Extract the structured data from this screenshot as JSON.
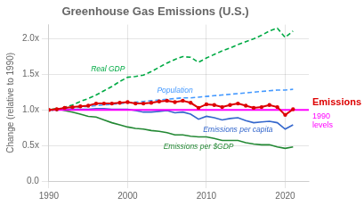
{
  "chart_data": {
    "type": "line",
    "title": "Greenhouse Gas Emissions (U.S.)",
    "ylabel": "Change (relative to 1990)",
    "x": [
      1990,
      1991,
      1992,
      1993,
      1994,
      1995,
      1996,
      1997,
      1998,
      1999,
      2000,
      2001,
      2002,
      2003,
      2004,
      2005,
      2006,
      2007,
      2008,
      2009,
      2010,
      2011,
      2012,
      2013,
      2014,
      2015,
      2016,
      2017,
      2018,
      2019,
      2020,
      2021
    ],
    "xlim": [
      1990,
      2023
    ],
    "xticks": [
      1990,
      2000,
      2010,
      2020
    ],
    "ylim": [
      0.0,
      2.2
    ],
    "yticks": [
      {
        "value": 0.0,
        "label": "0.0"
      },
      {
        "value": 0.5,
        "label": "0.5x"
      },
      {
        "value": 1.0,
        "label": "1.0x"
      },
      {
        "value": 1.5,
        "label": "1.5x"
      },
      {
        "value": 2.0,
        "label": "2.0x"
      }
    ],
    "grid": true,
    "series": [
      {
        "name": "Real GDP",
        "color": "#00aa44",
        "line_style": "dashed",
        "values": [
          1.0,
          0.99,
          1.04,
          1.07,
          1.12,
          1.16,
          1.21,
          1.27,
          1.33,
          1.4,
          1.46,
          1.47,
          1.49,
          1.54,
          1.6,
          1.66,
          1.71,
          1.75,
          1.74,
          1.67,
          1.73,
          1.78,
          1.83,
          1.87,
          1.92,
          1.96,
          2.0,
          2.05,
          2.11,
          2.15,
          2.02,
          2.11
        ]
      },
      {
        "name": "Population",
        "color": "#4499ff",
        "line_style": "dashed",
        "values": [
          1.0,
          1.01,
          1.02,
          1.03,
          1.04,
          1.05,
          1.06,
          1.07,
          1.08,
          1.09,
          1.1,
          1.11,
          1.12,
          1.13,
          1.14,
          1.15,
          1.16,
          1.17,
          1.17,
          1.18,
          1.19,
          1.2,
          1.21,
          1.22,
          1.23,
          1.24,
          1.25,
          1.26,
          1.27,
          1.28,
          1.28,
          1.29
        ]
      },
      {
        "name": "Emissions per capita",
        "color": "#3366cc",
        "line_style": "solid",
        "values": [
          1.0,
          1.0,
          1.01,
          1.01,
          1.01,
          1.01,
          1.02,
          1.02,
          1.01,
          1.01,
          1.01,
          0.99,
          0.97,
          0.97,
          0.98,
          0.99,
          0.96,
          0.97,
          0.94,
          0.87,
          0.91,
          0.89,
          0.86,
          0.88,
          0.89,
          0.85,
          0.82,
          0.83,
          0.84,
          0.82,
          0.73,
          0.79
        ]
      },
      {
        "name": "Emissions per $GDP",
        "color": "#228833",
        "line_style": "solid",
        "values": [
          1.0,
          1.02,
          0.99,
          0.97,
          0.94,
          0.91,
          0.9,
          0.86,
          0.82,
          0.79,
          0.76,
          0.74,
          0.73,
          0.71,
          0.7,
          0.68,
          0.65,
          0.65,
          0.63,
          0.62,
          0.62,
          0.6,
          0.57,
          0.57,
          0.57,
          0.54,
          0.52,
          0.51,
          0.51,
          0.48,
          0.46,
          0.48
        ]
      },
      {
        "name": "Emissions",
        "color": "#dd0000",
        "line_style": "solid",
        "marker": "circle",
        "values": [
          1.0,
          1.01,
          1.03,
          1.04,
          1.05,
          1.06,
          1.09,
          1.09,
          1.09,
          1.1,
          1.11,
          1.09,
          1.09,
          1.1,
          1.12,
          1.13,
          1.11,
          1.13,
          1.1,
          1.03,
          1.08,
          1.07,
          1.04,
          1.07,
          1.09,
          1.06,
          1.03,
          1.04,
          1.07,
          1.04,
          0.93,
          1.01
        ]
      }
    ],
    "reference_lines": [
      {
        "y": 1.0,
        "label": "1990\nlevels",
        "color": "#ff00ff"
      }
    ]
  }
}
